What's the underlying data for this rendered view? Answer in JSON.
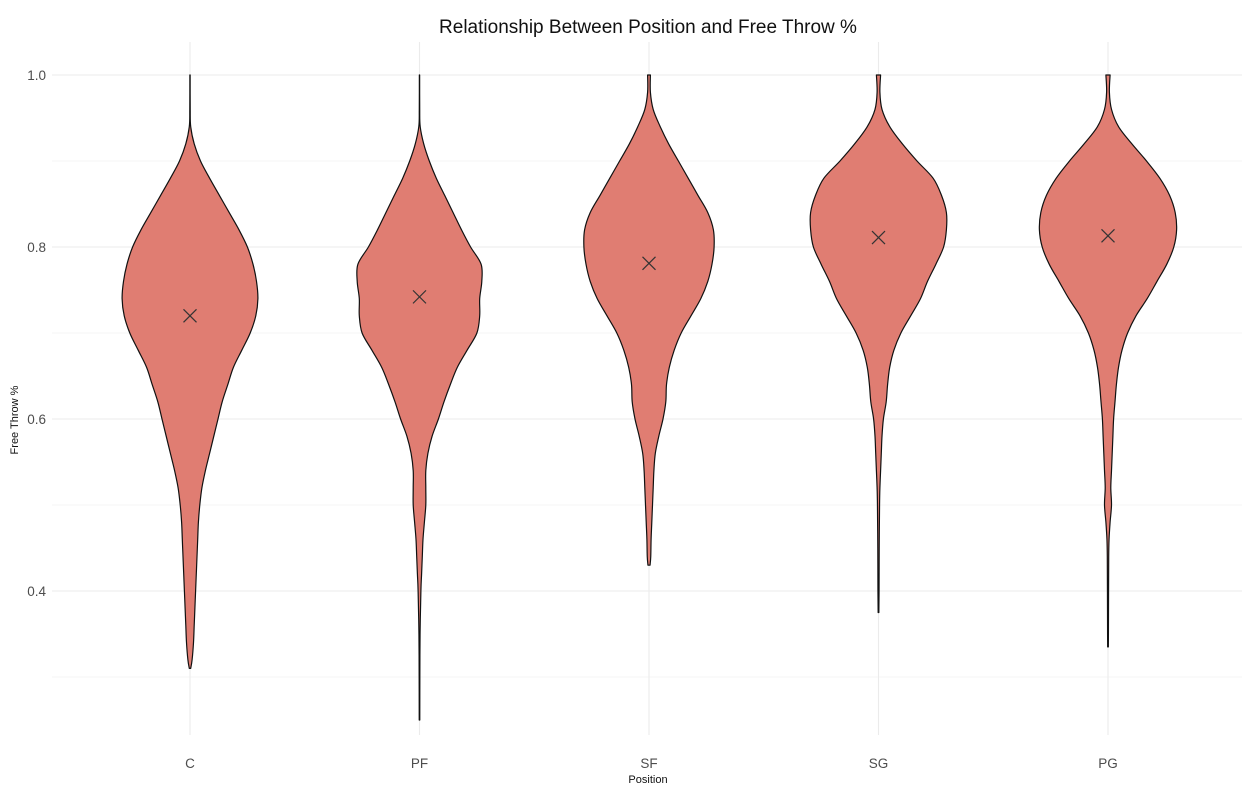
{
  "chart_data": {
    "type": "violin",
    "title": "Relationship Between Position and Free Throw %",
    "xlabel": "Position",
    "ylabel": "Free Throw %",
    "ylim": [
      0.22,
      1.0
    ],
    "yticks": [
      0.4,
      0.6,
      0.8,
      1.0
    ],
    "ytick_labels": [
      "0.4",
      "0.6",
      "0.8",
      "1.0"
    ],
    "grid": true,
    "fill_color": "#e07d72",
    "outline_color": "#111111",
    "marker": "x",
    "categories": [
      "C",
      "PF",
      "SF",
      "SG",
      "PG"
    ],
    "series": [
      {
        "category": "C",
        "mean": 0.72,
        "min": 0.31,
        "max": 1.0,
        "density_profile": [
          [
            1.0,
            0.002
          ],
          [
            0.96,
            0.003
          ],
          [
            0.94,
            0.01
          ],
          [
            0.92,
            0.06
          ],
          [
            0.9,
            0.15
          ],
          [
            0.88,
            0.28
          ],
          [
            0.86,
            0.42
          ],
          [
            0.84,
            0.56
          ],
          [
            0.82,
            0.7
          ],
          [
            0.8,
            0.82
          ],
          [
            0.78,
            0.9
          ],
          [
            0.76,
            0.95
          ],
          [
            0.74,
            0.97
          ],
          [
            0.72,
            0.94
          ],
          [
            0.7,
            0.86
          ],
          [
            0.68,
            0.74
          ],
          [
            0.66,
            0.62
          ],
          [
            0.64,
            0.54
          ],
          [
            0.62,
            0.46
          ],
          [
            0.6,
            0.4
          ],
          [
            0.58,
            0.34
          ],
          [
            0.56,
            0.28
          ],
          [
            0.54,
            0.22
          ],
          [
            0.52,
            0.17
          ],
          [
            0.5,
            0.14
          ],
          [
            0.48,
            0.12
          ],
          [
            0.46,
            0.11
          ],
          [
            0.44,
            0.1
          ],
          [
            0.42,
            0.09
          ],
          [
            0.4,
            0.08
          ],
          [
            0.38,
            0.07
          ],
          [
            0.36,
            0.06
          ],
          [
            0.34,
            0.05
          ],
          [
            0.32,
            0.03
          ],
          [
            0.31,
            0.01
          ]
        ]
      },
      {
        "category": "PF",
        "mean": 0.742,
        "min": 0.25,
        "max": 1.0,
        "density_profile": [
          [
            1.0,
            0.002
          ],
          [
            0.96,
            0.003
          ],
          [
            0.94,
            0.01
          ],
          [
            0.92,
            0.06
          ],
          [
            0.9,
            0.14
          ],
          [
            0.88,
            0.24
          ],
          [
            0.86,
            0.36
          ],
          [
            0.84,
            0.48
          ],
          [
            0.82,
            0.6
          ],
          [
            0.8,
            0.73
          ],
          [
            0.78,
            0.88
          ],
          [
            0.76,
            0.89
          ],
          [
            0.74,
            0.86
          ],
          [
            0.72,
            0.86
          ],
          [
            0.7,
            0.82
          ],
          [
            0.68,
            0.68
          ],
          [
            0.66,
            0.54
          ],
          [
            0.64,
            0.44
          ],
          [
            0.62,
            0.35
          ],
          [
            0.6,
            0.27
          ],
          [
            0.58,
            0.18
          ],
          [
            0.56,
            0.12
          ],
          [
            0.54,
            0.09
          ],
          [
            0.52,
            0.09
          ],
          [
            0.5,
            0.09
          ],
          [
            0.48,
            0.07
          ],
          [
            0.46,
            0.05
          ],
          [
            0.44,
            0.04
          ],
          [
            0.42,
            0.03
          ],
          [
            0.4,
            0.02
          ],
          [
            0.35,
            0.008
          ],
          [
            0.3,
            0.005
          ],
          [
            0.25,
            0.004
          ]
        ]
      },
      {
        "category": "SF",
        "mean": 0.781,
        "min": 0.43,
        "max": 1.0,
        "density_profile": [
          [
            1.0,
            0.02
          ],
          [
            0.98,
            0.02
          ],
          [
            0.96,
            0.06
          ],
          [
            0.94,
            0.16
          ],
          [
            0.92,
            0.28
          ],
          [
            0.9,
            0.42
          ],
          [
            0.88,
            0.56
          ],
          [
            0.86,
            0.7
          ],
          [
            0.84,
            0.84
          ],
          [
            0.82,
            0.92
          ],
          [
            0.8,
            0.93
          ],
          [
            0.78,
            0.9
          ],
          [
            0.76,
            0.84
          ],
          [
            0.74,
            0.74
          ],
          [
            0.72,
            0.6
          ],
          [
            0.7,
            0.46
          ],
          [
            0.68,
            0.36
          ],
          [
            0.66,
            0.29
          ],
          [
            0.64,
            0.25
          ],
          [
            0.62,
            0.24
          ],
          [
            0.6,
            0.2
          ],
          [
            0.58,
            0.14
          ],
          [
            0.56,
            0.09
          ],
          [
            0.54,
            0.07
          ],
          [
            0.52,
            0.06
          ],
          [
            0.5,
            0.05
          ],
          [
            0.48,
            0.04
          ],
          [
            0.46,
            0.03
          ],
          [
            0.44,
            0.025
          ],
          [
            0.43,
            0.015
          ]
        ]
      },
      {
        "category": "SG",
        "mean": 0.811,
        "min": 0.375,
        "max": 1.0,
        "density_profile": [
          [
            1.0,
            0.03
          ],
          [
            0.98,
            0.02
          ],
          [
            0.96,
            0.05
          ],
          [
            0.94,
            0.16
          ],
          [
            0.92,
            0.34
          ],
          [
            0.9,
            0.55
          ],
          [
            0.88,
            0.78
          ],
          [
            0.86,
            0.9
          ],
          [
            0.84,
            0.97
          ],
          [
            0.82,
            0.97
          ],
          [
            0.8,
            0.93
          ],
          [
            0.78,
            0.82
          ],
          [
            0.76,
            0.7
          ],
          [
            0.74,
            0.6
          ],
          [
            0.72,
            0.46
          ],
          [
            0.7,
            0.32
          ],
          [
            0.68,
            0.22
          ],
          [
            0.66,
            0.16
          ],
          [
            0.64,
            0.13
          ],
          [
            0.62,
            0.11
          ],
          [
            0.6,
            0.07
          ],
          [
            0.58,
            0.05
          ],
          [
            0.56,
            0.04
          ],
          [
            0.54,
            0.03
          ],
          [
            0.52,
            0.02
          ],
          [
            0.5,
            0.015
          ],
          [
            0.45,
            0.01
          ],
          [
            0.4,
            0.008
          ],
          [
            0.375,
            0.005
          ]
        ]
      },
      {
        "category": "PG",
        "mean": 0.813,
        "min": 0.335,
        "max": 1.0,
        "density_profile": [
          [
            1.0,
            0.03
          ],
          [
            0.98,
            0.02
          ],
          [
            0.96,
            0.05
          ],
          [
            0.94,
            0.15
          ],
          [
            0.92,
            0.34
          ],
          [
            0.9,
            0.55
          ],
          [
            0.88,
            0.74
          ],
          [
            0.86,
            0.88
          ],
          [
            0.84,
            0.96
          ],
          [
            0.82,
            0.98
          ],
          [
            0.8,
            0.94
          ],
          [
            0.78,
            0.84
          ],
          [
            0.76,
            0.7
          ],
          [
            0.74,
            0.56
          ],
          [
            0.72,
            0.4
          ],
          [
            0.7,
            0.28
          ],
          [
            0.68,
            0.2
          ],
          [
            0.66,
            0.15
          ],
          [
            0.64,
            0.12
          ],
          [
            0.62,
            0.1
          ],
          [
            0.6,
            0.08
          ],
          [
            0.58,
            0.07
          ],
          [
            0.56,
            0.06
          ],
          [
            0.54,
            0.05
          ],
          [
            0.52,
            0.04
          ],
          [
            0.5,
            0.05
          ],
          [
            0.48,
            0.03
          ],
          [
            0.46,
            0.015
          ],
          [
            0.44,
            0.01
          ],
          [
            0.4,
            0.008
          ],
          [
            0.35,
            0.006
          ],
          [
            0.335,
            0.005
          ]
        ]
      }
    ]
  }
}
